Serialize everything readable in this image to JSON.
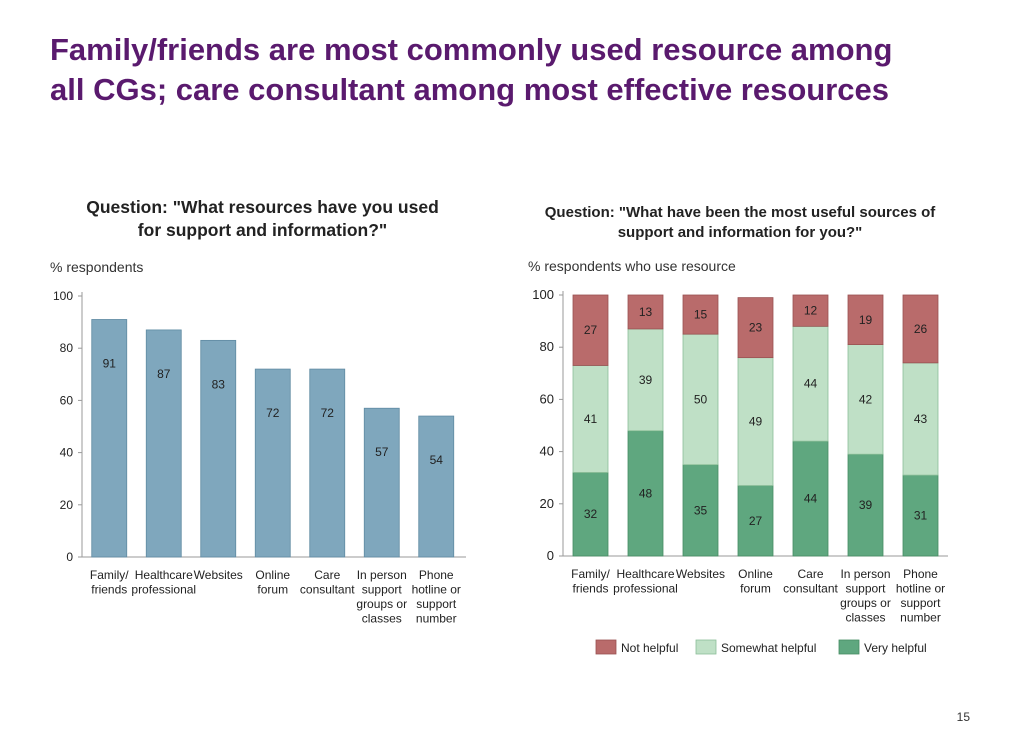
{
  "slide": {
    "title_line1": "Family/friends are most commonly used resource among",
    "title_line2": "all CGs; care consultant among most effective resources",
    "page_number": "15"
  },
  "colors": {
    "title": "#5a1a6e",
    "bar": "#7fa7bd",
    "not_helpful": "#b96b6b",
    "somewhat_helpful": "#bfe0c6",
    "very_helpful": "#5fa77f"
  },
  "chart_data": [
    {
      "type": "bar",
      "question_line1": "Question: \"What resources have you used",
      "question_line2": "for support and information?\"",
      "ylabel": "% respondents",
      "ylim": [
        0,
        100
      ],
      "yticks": [
        0,
        20,
        40,
        60,
        80,
        100
      ],
      "categories": [
        [
          "Family/",
          "friends"
        ],
        [
          "Healthcare",
          "professional"
        ],
        [
          "Websites"
        ],
        [
          "Online",
          "forum"
        ],
        [
          "Care",
          "consultant"
        ],
        [
          "In person",
          "support",
          "groups or",
          "classes"
        ],
        [
          "Phone",
          "hotline or",
          "support",
          "number"
        ]
      ],
      "values": [
        91,
        87,
        83,
        72,
        72,
        57,
        54
      ]
    },
    {
      "type": "bar",
      "stacked": true,
      "question_line1": "Question: \"What have been the most useful sources of",
      "question_line2": "support and information for you?\"",
      "ylabel": "% respondents who use resource",
      "ylim": [
        0,
        100
      ],
      "yticks": [
        0,
        20,
        40,
        60,
        80,
        100
      ],
      "categories": [
        [
          "Family/",
          "friends"
        ],
        [
          "Healthcare",
          "professional"
        ],
        [
          "Websites"
        ],
        [
          "Online",
          "forum"
        ],
        [
          "Care",
          "consultant"
        ],
        [
          "In person",
          "support",
          "groups or",
          "classes"
        ],
        [
          "Phone",
          "hotline or",
          "support",
          "number"
        ]
      ],
      "series": [
        {
          "name": "Very helpful",
          "values": [
            32,
            48,
            35,
            27,
            44,
            39,
            31
          ]
        },
        {
          "name": "Somewhat helpful",
          "values": [
            41,
            39,
            50,
            49,
            44,
            42,
            43
          ]
        },
        {
          "name": "Not helpful",
          "values": [
            27,
            13,
            15,
            23,
            12,
            19,
            26
          ]
        }
      ],
      "legend": [
        "Not helpful",
        "Somewhat helpful",
        "Very helpful"
      ],
      "legend_position": "bottom"
    }
  ]
}
